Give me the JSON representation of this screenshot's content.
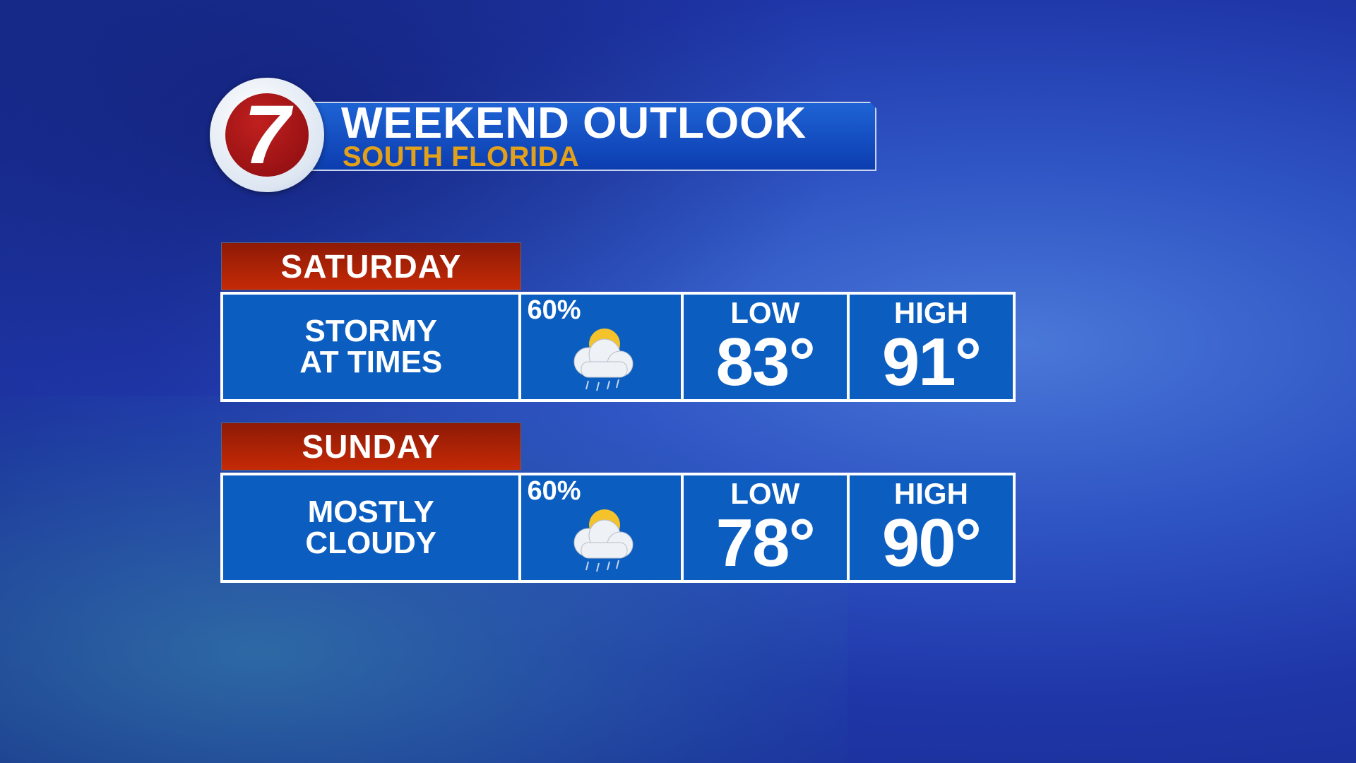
{
  "logo": {
    "text": "7",
    "colors": {
      "ring": "#ffffff",
      "disc": "#a51414"
    }
  },
  "header": {
    "title": "WEEKEND OUTLOOK",
    "subtitle": "SOUTH FLORIDA"
  },
  "days": [
    {
      "day": "SATURDAY",
      "condition_line1": "STORMY",
      "condition_line2": "AT TIMES",
      "rain_chance": "60%",
      "icon": "partly-sunny-rain-cloud-icon",
      "low_label": "LOW",
      "low": "83°",
      "high_label": "HIGH",
      "high": "91°"
    },
    {
      "day": "SUNDAY",
      "condition_line1": "MOSTLY",
      "condition_line2": "CLOUDY",
      "rain_chance": "60%",
      "icon": "partly-sunny-rain-cloud-icon",
      "low_label": "LOW",
      "low": "78°",
      "high_label": "HIGH",
      "high": "90°"
    }
  ],
  "colors": {
    "panel": "#0b5ec0",
    "day_tab": "#b02406",
    "subtitle": "#e3a11a"
  }
}
